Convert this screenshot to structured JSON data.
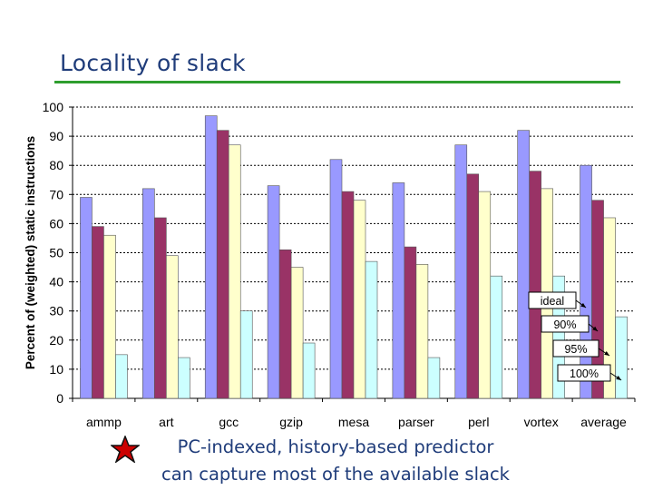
{
  "slide": {
    "title": "Locality of slack",
    "footer_line1": "PC-indexed, history-based predictor",
    "footer_line2": "can capture most of the available slack",
    "accent_color": "#2e9e2e",
    "title_color": "#1f3c7a",
    "bullet_icon": "star-icon"
  },
  "chart_data": {
    "type": "bar",
    "title": "",
    "xlabel": "",
    "ylabel": "Percent of (weighted) static instructions",
    "ylim": [
      0,
      100
    ],
    "yticks": [
      0,
      10,
      20,
      30,
      40,
      50,
      60,
      70,
      80,
      90,
      100
    ],
    "grid": "horizontal-dashed",
    "categories": [
      "ammp",
      "art",
      "gcc",
      "gzip",
      "mesa",
      "parser",
      "perl",
      "vortex",
      "average"
    ],
    "series": [
      {
        "name": "ideal",
        "color": "#9999ff",
        "values": [
          69,
          72,
          97,
          73,
          82,
          74,
          87,
          92,
          80
        ]
      },
      {
        "name": "90%",
        "color": "#993366",
        "values": [
          59,
          62,
          92,
          51,
          71,
          52,
          77,
          78,
          68
        ]
      },
      {
        "name": "95%",
        "color": "#ffffcc",
        "values": [
          56,
          49,
          87,
          45,
          68,
          46,
          71,
          72,
          62
        ]
      },
      {
        "name": "100%",
        "color": "#ccffff",
        "values": [
          15,
          14,
          30,
          19,
          47,
          14,
          42,
          42,
          28
        ]
      }
    ],
    "legend": "callouts-lower-right"
  }
}
